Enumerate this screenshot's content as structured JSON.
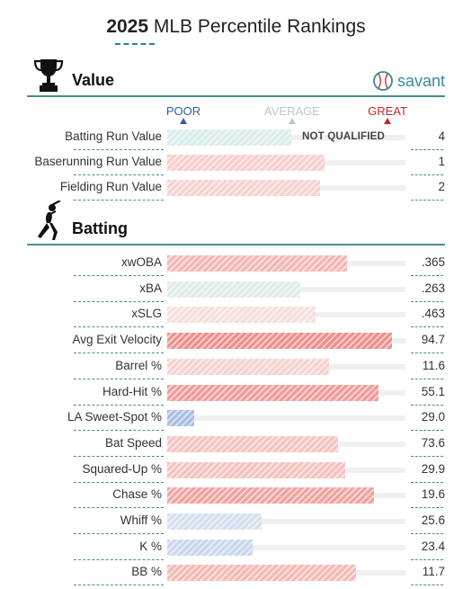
{
  "header": {
    "year": "2025",
    "title_rest": " MLB Percentile Rankings"
  },
  "scale": {
    "poor": "POOR",
    "average": "AVERAGE",
    "great": "GREAT"
  },
  "value_section": {
    "title": "Value",
    "brand": "savant",
    "rows": [
      {
        "label": "Batting Run Value",
        "value": "4",
        "percentile": 55,
        "note": "NOT QUALIFIED",
        "color": "#d9eceb"
      },
      {
        "label": "Baserunning Run Value",
        "value": "1",
        "percentile": 70,
        "color": "#f6cfcc"
      },
      {
        "label": "Fielding Run Value",
        "value": "2",
        "percentile": 68,
        "color": "#f6d2cf"
      }
    ]
  },
  "batting_section": {
    "title": "Batting",
    "rows": [
      {
        "label": "xwOBA",
        "value": ".365",
        "percentile": 80,
        "color": "#f2b7b3"
      },
      {
        "label": "xBA",
        "value": ".263",
        "percentile": 59,
        "color": "#dfeaea"
      },
      {
        "label": "xSLG",
        "value": ".463",
        "percentile": 66,
        "color": "#f6dedb"
      },
      {
        "label": "Avg Exit Velocity",
        "value": "94.7",
        "percentile": 100,
        "color": "#ee8f8c"
      },
      {
        "label": "Barrel %",
        "value": "11.6",
        "percentile": 72,
        "color": "#f6d2cf"
      },
      {
        "label": "Hard-Hit %",
        "value": "55.1",
        "percentile": 94,
        "color": "#ee9c98"
      },
      {
        "label": "LA Sweet-Spot %",
        "value": "29.0",
        "percentile": 12,
        "color": "#a9bde0"
      },
      {
        "label": "Bat Speed",
        "value": "73.6",
        "percentile": 76,
        "color": "#f4c4c0"
      },
      {
        "label": "Squared-Up %",
        "value": "29.9",
        "percentile": 79,
        "color": "#f4c2be"
      },
      {
        "label": "Chase %",
        "value": "19.6",
        "percentile": 92,
        "color": "#efa4a0"
      },
      {
        "label": "Whiff %",
        "value": "25.6",
        "percentile": 42,
        "color": "#d4dfee"
      },
      {
        "label": "K %",
        "value": "23.4",
        "percentile": 38,
        "color": "#c9d6ec"
      },
      {
        "label": "BB %",
        "value": "11.7",
        "percentile": 84,
        "color": "#f3b9b5"
      }
    ]
  },
  "colors": {
    "poor": "#2f5fa8",
    "average": "#a8c4c4",
    "great": "#c0282f",
    "accent": "#4a8c8c"
  },
  "icons": {
    "value": "trophy-icon",
    "batting": "batter-icon",
    "brand": "baseball-icon"
  }
}
